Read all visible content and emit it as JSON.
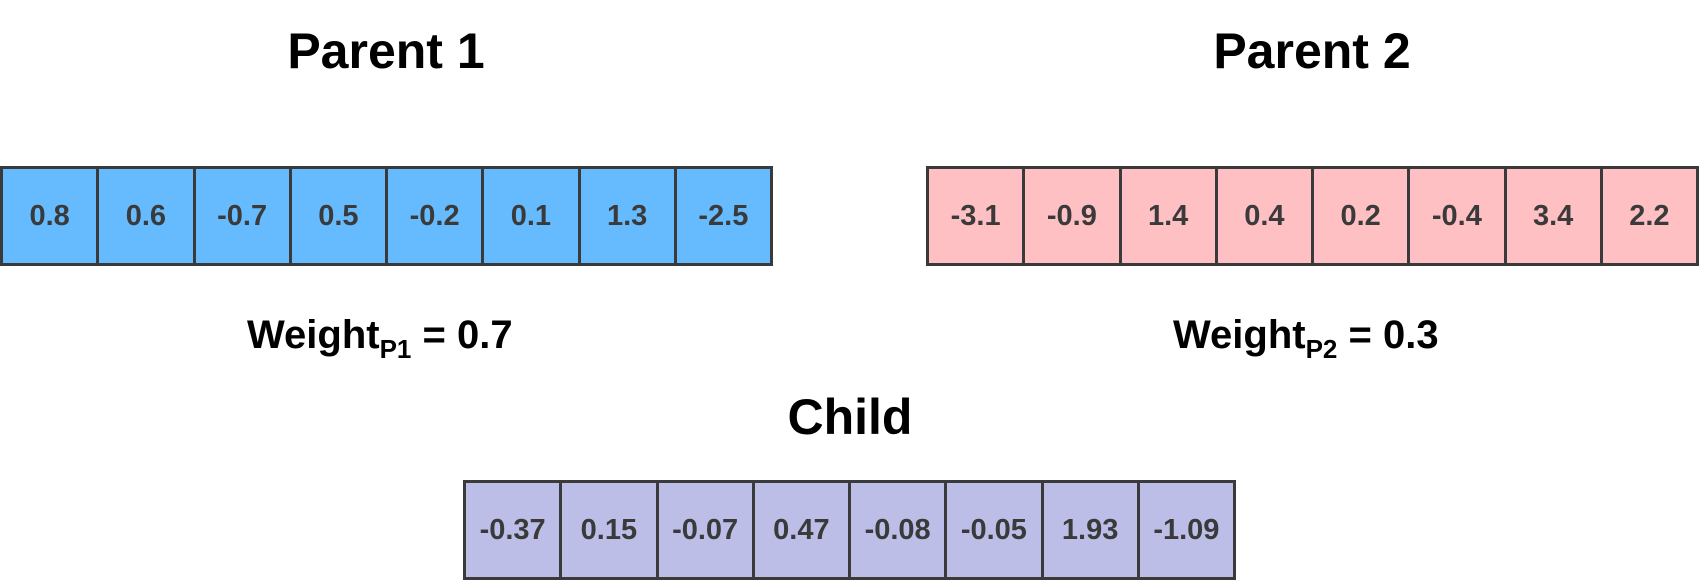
{
  "parent1": {
    "title": "Parent 1",
    "values": [
      "0.8",
      "0.6",
      "-0.7",
      "0.5",
      "-0.2",
      "0.1",
      "1.3",
      "-2.5"
    ],
    "weight_label": "Weight",
    "weight_sub": "P1",
    "weight_eq": " = 0.7",
    "color": "#66bbff"
  },
  "parent2": {
    "title": "Parent 2",
    "values": [
      "-3.1",
      "-0.9",
      "1.4",
      "0.4",
      "0.2",
      "-0.4",
      "3.4",
      "2.2"
    ],
    "weight_label": "Weight",
    "weight_sub": "P2",
    "weight_eq": " = 0.3",
    "color": "#ffc0c4"
  },
  "child": {
    "title": "Child",
    "values": [
      "-0.37",
      "0.15",
      "-0.07",
      "0.47",
      "-0.08",
      "-0.05",
      "1.93",
      "-1.09"
    ],
    "color": "#bcbee8"
  }
}
